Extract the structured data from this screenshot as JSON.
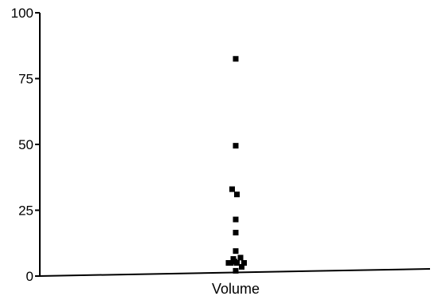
{
  "chart_data": {
    "type": "scatter",
    "title": "",
    "xlabel": "",
    "ylabel": "",
    "categories": [
      "Volume"
    ],
    "ylim": [
      0,
      100
    ],
    "yticks": [
      0,
      25,
      50,
      75,
      100
    ],
    "ytick_labels": [
      "0",
      "25",
      "50",
      "75",
      "100"
    ],
    "grid": false,
    "legend": "none",
    "marker": "square",
    "colors": {
      "marker": "#000000",
      "axis": "#000000",
      "background": "#ffffff"
    },
    "series": [
      {
        "category": "Volume",
        "points": [
          {
            "offset": 0.0,
            "y": 82.5
          },
          {
            "offset": 0.0,
            "y": 49.5
          },
          {
            "offset": -0.15,
            "y": 33.0
          },
          {
            "offset": 0.05,
            "y": 31.0
          },
          {
            "offset": 0.0,
            "y": 21.5
          },
          {
            "offset": 0.0,
            "y": 16.5
          },
          {
            "offset": 0.0,
            "y": 9.5
          },
          {
            "offset": 0.2,
            "y": 7.0
          },
          {
            "offset": -0.1,
            "y": 6.5
          },
          {
            "offset": -0.3,
            "y": 5.0
          },
          {
            "offset": -0.2,
            "y": 5.0
          },
          {
            "offset": -0.05,
            "y": 5.5
          },
          {
            "offset": 0.05,
            "y": 5.0
          },
          {
            "offset": 0.35,
            "y": 5.0
          },
          {
            "offset": 0.25,
            "y": 3.5
          },
          {
            "offset": 0.0,
            "y": 2.0
          }
        ]
      }
    ]
  }
}
